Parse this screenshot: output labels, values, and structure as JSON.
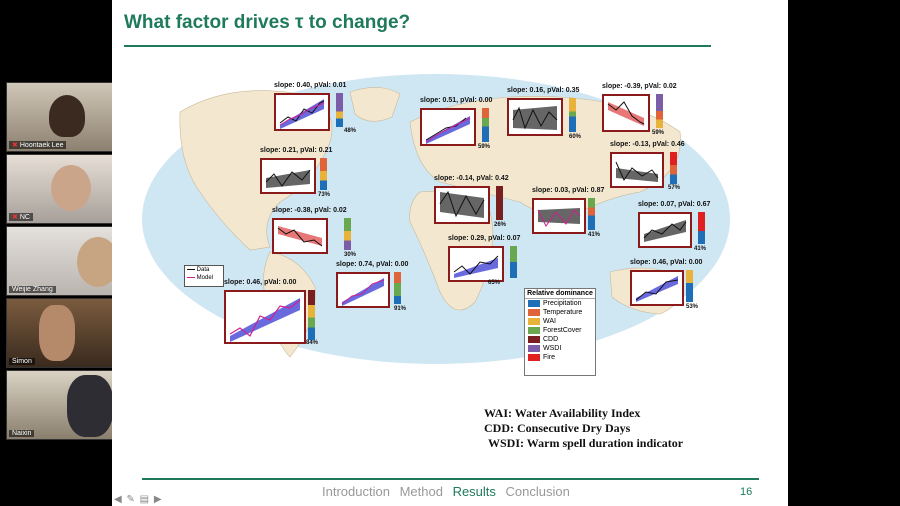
{
  "slide": {
    "title": "What factor drives τ to change?",
    "page_number": "16",
    "nav": [
      "Introduction",
      "Method",
      "Results",
      "Conclusion"
    ],
    "active_nav": "Results",
    "definitions": [
      "WAI: Water Availability Index",
      "CDD: Consecutive Dry Days",
      "WSDI: Warm spell duration indicator"
    ]
  },
  "legend_model": [
    "Data",
    "Model"
  ],
  "dominance_legend": {
    "title": "Relative dominance",
    "items": [
      {
        "label": "Precipitation",
        "color": "#1f6fb8"
      },
      {
        "label": "Temperature",
        "color": "#e0643a"
      },
      {
        "label": "WAI",
        "color": "#e8b33a"
      },
      {
        "label": "ForestCover",
        "color": "#6aa84f"
      },
      {
        "label": "CDD",
        "color": "#7a1f1f"
      },
      {
        "label": "WSDI",
        "color": "#7b5ea7"
      },
      {
        "label": "Fire",
        "color": "#e02020"
      }
    ]
  },
  "panels": [
    {
      "stat": "slope: 0.40, pVal: 0.01",
      "pct": "48%",
      "yticks": [
        "4.8",
        "4.6",
        "4.4",
        "4.2"
      ],
      "xticks": "1990 2000 2010 2020"
    },
    {
      "stat": "slope: 0.51, pVal: 0.00",
      "pct": "59%",
      "yticks": [
        "3",
        "2.5"
      ],
      "xticks": "1990 2000 2010 2020"
    },
    {
      "stat": "slope: 0.16, pVal: 0.35",
      "pct": "60%",
      "yticks": [
        "5.3",
        "5"
      ],
      "xticks": "1990 2000 2010 2020"
    },
    {
      "stat": "slope: -0.39, pVal: 0.02",
      "pct": "59%",
      "yticks": [
        "5",
        "4.5"
      ],
      "xticks": "1990 2000 2010 2020"
    },
    {
      "stat": "slope: 0.21, pVal: 0.21",
      "pct": "73%",
      "yticks": [
        "1.9",
        "1.8",
        "1.7"
      ],
      "xticks": "1990 2000 2010 2020"
    },
    {
      "stat": "slope: -0.13, pVal: 0.46",
      "pct": "57%",
      "yticks": [
        "2",
        "1.5"
      ],
      "xticks": "1990 2000 2010 2020"
    },
    {
      "stat": "slope: -0.14, pVal: 0.42",
      "pct": "26%",
      "yticks": [
        "3.3",
        "3.2",
        "3.1",
        "3",
        "2.9"
      ],
      "xticks": "1990 2000 2010 2020"
    },
    {
      "stat": "slope: 0.03, pVal: 0.87",
      "pct": "41%",
      "yticks": [
        "1.4",
        "1.2",
        "1"
      ],
      "xticks": "1990 2000 2010 2020"
    },
    {
      "stat": "slope: -0.38, pVal: 0.02",
      "pct": "30%",
      "yticks": [
        "5.5",
        "5.4",
        "5.3"
      ],
      "xticks": "1990 2000 2010 2020"
    },
    {
      "stat": "slope: 0.07, pVal: 0.67",
      "pct": "41%",
      "yticks": [
        "5.5",
        "5",
        "4.5"
      ],
      "xticks": "1990 2000 2010 2020"
    },
    {
      "stat": "slope: 0.29, pVal: 0.07",
      "pct": "65%",
      "yticks": [
        "1.3",
        "1.2",
        "1.1",
        "1",
        "0.9"
      ],
      "xticks": "1990 2000 2010 2020"
    },
    {
      "stat": "slope: 0.74, pVal: 0.00",
      "pct": "91%",
      "yticks": [
        "1.4",
        "1.2",
        "1"
      ],
      "xticks": "1990 2000 2010 2020"
    },
    {
      "stat": "slope: 0.46, pVal: 0.00",
      "pct": "53%",
      "yticks": [
        "1.8",
        "1.6",
        "1.4"
      ],
      "xticks": "1990 2000 2010 2020"
    },
    {
      "stat": "slope: 0.46, pVal: 0.00",
      "pct": "84%",
      "yticks": [
        "3.3",
        "3.25",
        "3.2",
        "3.15"
      ],
      "xticks": "1990   2000   2010   2020"
    }
  ],
  "participants": [
    {
      "name": "Hoontaek Lee",
      "muted": true
    },
    {
      "name": "NC",
      "muted": true
    },
    {
      "name": "Weijie Zhang",
      "muted": false
    },
    {
      "name": "Simon",
      "muted": false
    },
    {
      "name": "Naixin",
      "muted": false
    }
  ]
}
